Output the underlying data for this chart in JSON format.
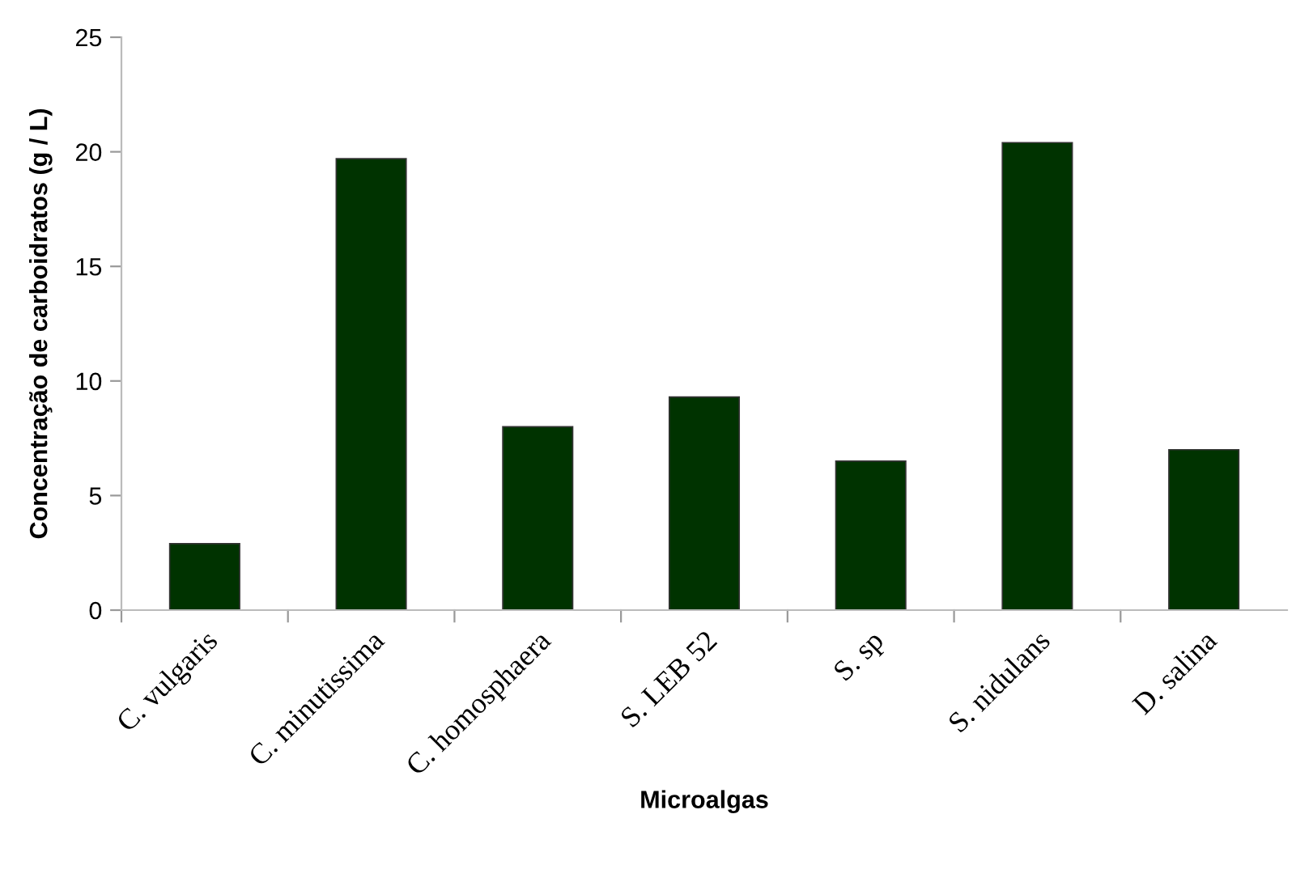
{
  "chart_data": {
    "type": "bar",
    "xlabel": "Microalgas",
    "ylabel": "Concentração de carboidratos (g / L)",
    "categories": [
      "C. vulgaris",
      "C. minutissima",
      "C. homosphaera",
      "S. LEB 52",
      "S. sp",
      "S. nidulans",
      "D. salina"
    ],
    "values": [
      2.9,
      19.7,
      8.0,
      9.3,
      6.5,
      20.4,
      7.0
    ],
    "color": "#003300",
    "ylim": [
      0,
      25
    ],
    "yticks": [
      0,
      5,
      10,
      15,
      20,
      25
    ],
    "grid": false,
    "legend": false
  }
}
